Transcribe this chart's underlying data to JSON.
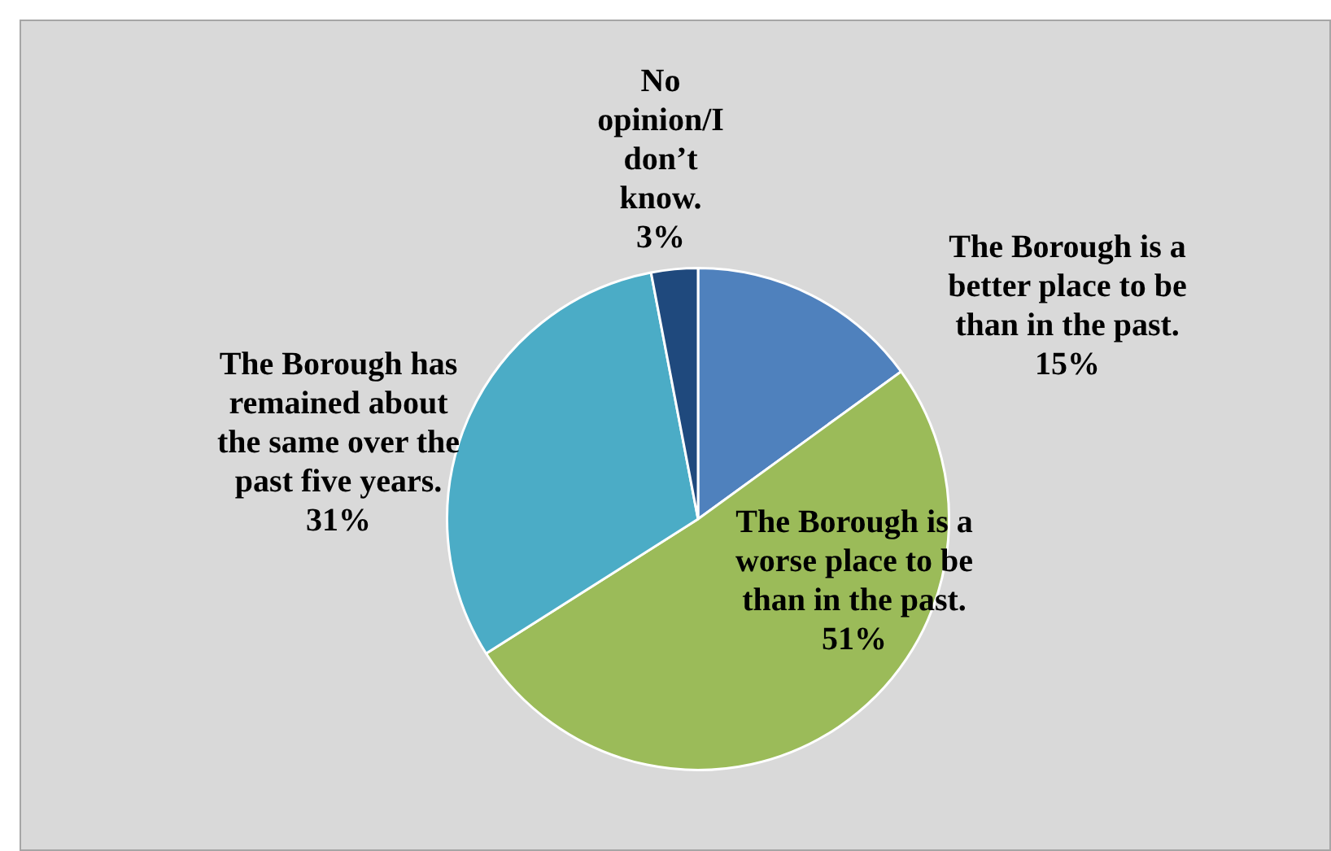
{
  "chart_data": {
    "type": "pie",
    "categories": [
      "The Borough is a better place to be than in the past.",
      "The Borough is a worse place to be than in the past.",
      "The Borough has remained about the same over the past five years.",
      "No opinion/I don’t know."
    ],
    "values": [
      15,
      51,
      31,
      3
    ],
    "colors": [
      "#4f81bd",
      "#9bbb59",
      "#4bacc6",
      "#1f497d"
    ],
    "value_labels": [
      "15%",
      "51%",
      "31%",
      "3%"
    ],
    "legend": false
  }
}
